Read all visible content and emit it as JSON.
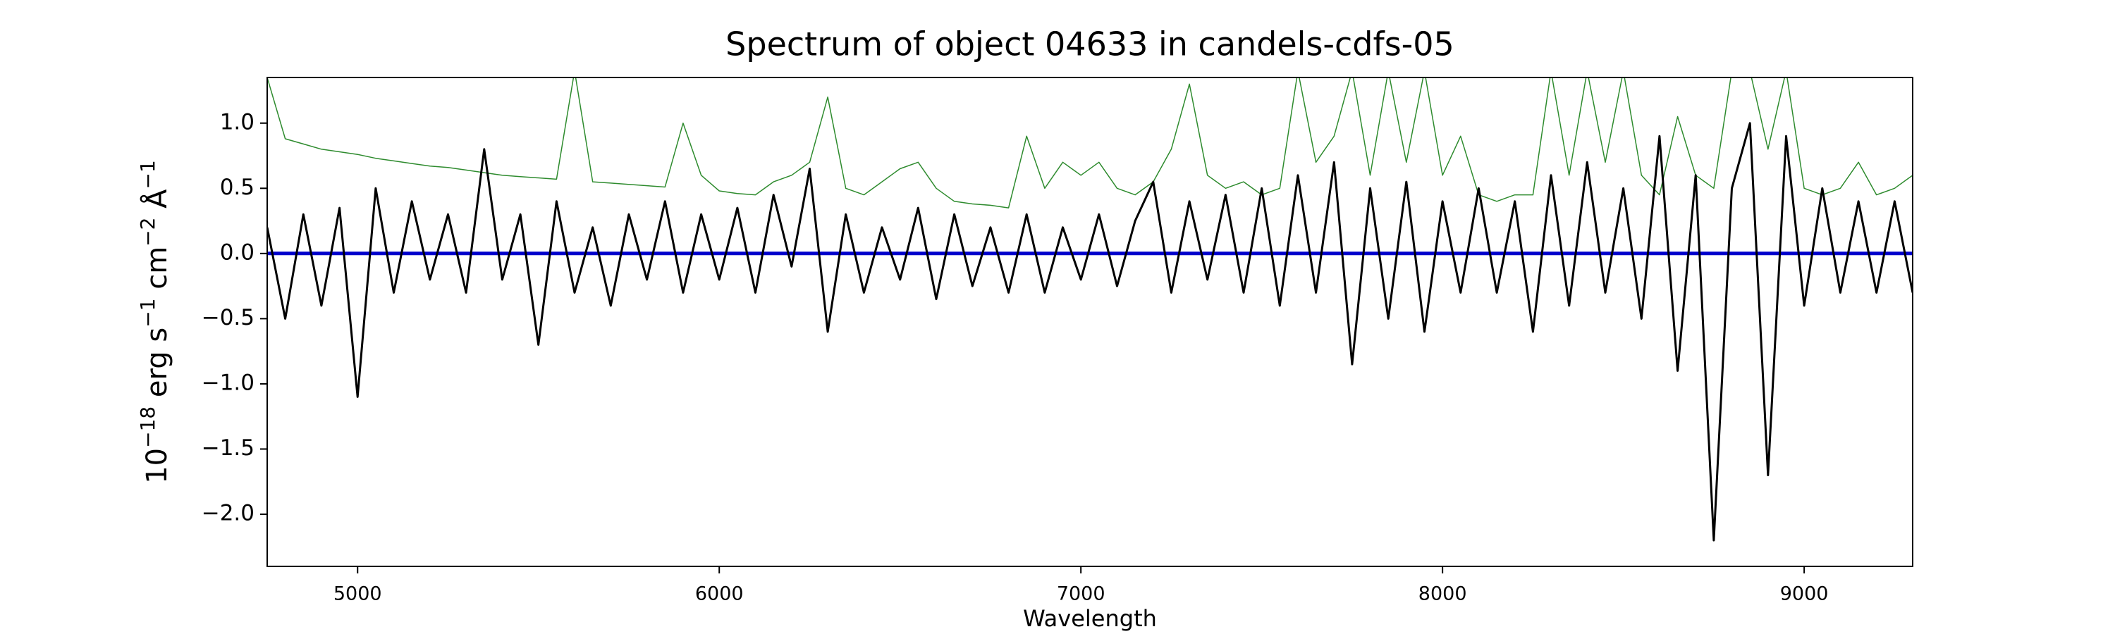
{
  "chart_data": {
    "type": "line",
    "title": "Spectrum of object 04633 in candels-cdfs-05",
    "xlabel": "Wavelength",
    "ylabel": [
      "10",
      "−18",
      " erg s",
      "−1",
      " cm",
      "−2",
      " Å",
      "−1"
    ],
    "x": [
      4750,
      4800,
      4850,
      4900,
      4950,
      5000,
      5050,
      5100,
      5150,
      5200,
      5250,
      5300,
      5350,
      5400,
      5450,
      5500,
      5550,
      5600,
      5650,
      5700,
      5750,
      5800,
      5850,
      5900,
      5950,
      6000,
      6050,
      6100,
      6150,
      6200,
      6250,
      6300,
      6350,
      6400,
      6450,
      6500,
      6550,
      6600,
      6650,
      6700,
      6750,
      6800,
      6850,
      6900,
      6950,
      7000,
      7050,
      7100,
      7150,
      7200,
      7250,
      7300,
      7350,
      7400,
      7450,
      7500,
      7550,
      7600,
      7650,
      7700,
      7750,
      7800,
      7850,
      7900,
      7950,
      8000,
      8050,
      8100,
      8150,
      8200,
      8250,
      8300,
      8350,
      8400,
      8450,
      8500,
      8550,
      8600,
      8650,
      8700,
      8750,
      8800,
      8850,
      8900,
      8950,
      9000,
      9050,
      9100,
      9150,
      9200,
      9250,
      9300
    ],
    "series": [
      {
        "color": "#2e8b2e",
        "width": 1.5,
        "values": [
          1.35,
          0.88,
          0.84,
          0.8,
          0.78,
          0.76,
          0.73,
          0.71,
          0.69,
          0.67,
          0.66,
          0.64,
          0.62,
          0.6,
          0.59,
          0.58,
          0.57,
          1.4,
          0.55,
          0.54,
          0.53,
          0.52,
          0.51,
          1.0,
          0.6,
          0.48,
          0.46,
          0.45,
          0.55,
          0.6,
          0.7,
          1.2,
          0.5,
          0.45,
          0.55,
          0.65,
          0.7,
          0.5,
          0.4,
          0.38,
          0.37,
          0.35,
          0.9,
          0.5,
          0.7,
          0.6,
          0.7,
          0.5,
          0.45,
          0.55,
          0.8,
          1.3,
          0.6,
          0.5,
          0.55,
          0.45,
          0.5,
          1.4,
          0.7,
          0.9,
          1.4,
          0.6,
          1.4,
          0.7,
          1.4,
          0.6,
          0.9,
          0.45,
          0.4,
          0.45,
          0.45,
          1.4,
          0.6,
          1.4,
          0.7,
          1.4,
          0.6,
          0.45,
          1.05,
          0.6,
          0.5,
          1.4,
          1.4,
          0.8,
          1.4,
          0.5,
          0.45,
          0.5,
          0.7,
          0.45,
          0.5,
          0.6
        ]
      },
      {
        "color": "#0000cc",
        "width": 5,
        "values": [
          0,
          0,
          0,
          0,
          0,
          0,
          0,
          0,
          0,
          0,
          0,
          0,
          0,
          0,
          0,
          0,
          0,
          0,
          0,
          0,
          0,
          0,
          0,
          0,
          0,
          0,
          0,
          0,
          0,
          0,
          0,
          0,
          0,
          0,
          0,
          0,
          0,
          0,
          0,
          0,
          0,
          0,
          0,
          0,
          0,
          0,
          0,
          0,
          0,
          0,
          0,
          0,
          0,
          0,
          0,
          0,
          0,
          0,
          0,
          0,
          0,
          0,
          0,
          0,
          0,
          0,
          0,
          0,
          0,
          0,
          0,
          0,
          0,
          0,
          0,
          0,
          0,
          0,
          0,
          0,
          0,
          0,
          0,
          0,
          0,
          0,
          0,
          0,
          0,
          0,
          0,
          0
        ]
      },
      {
        "color": "#000000",
        "width": 3,
        "values": [
          0.2,
          -0.5,
          0.3,
          -0.4,
          0.35,
          -1.1,
          0.5,
          -0.3,
          0.4,
          -0.2,
          0.3,
          -0.3,
          0.8,
          -0.2,
          0.3,
          -0.7,
          0.4,
          -0.3,
          0.2,
          -0.4,
          0.3,
          -0.2,
          0.4,
          -0.3,
          0.3,
          -0.2,
          0.35,
          -0.3,
          0.45,
          -0.1,
          0.65,
          -0.6,
          0.3,
          -0.3,
          0.2,
          -0.2,
          0.35,
          -0.35,
          0.3,
          -0.25,
          0.2,
          -0.3,
          0.3,
          -0.3,
          0.2,
          -0.2,
          0.3,
          -0.25,
          0.25,
          0.55,
          -0.3,
          0.4,
          -0.2,
          0.45,
          -0.3,
          0.5,
          -0.4,
          0.6,
          -0.3,
          0.7,
          -0.85,
          0.5,
          -0.5,
          0.55,
          -0.6,
          0.4,
          -0.3,
          0.5,
          -0.3,
          0.4,
          -0.6,
          0.6,
          -0.4,
          0.7,
          -0.3,
          0.5,
          -0.5,
          0.9,
          -0.9,
          0.6,
          -2.2,
          0.5,
          1.0,
          -1.7,
          0.9,
          -0.4,
          0.5,
          -0.3,
          0.4,
          -0.3,
          0.4,
          -0.3
        ]
      }
    ],
    "xlim": [
      4750,
      9300
    ],
    "xticks": [
      5000,
      6000,
      7000,
      8000,
      9000
    ],
    "ylim": [
      -2.4,
      1.35
    ],
    "yticks": [
      {
        "value": -2.0,
        "label": "−2.0"
      },
      {
        "value": -1.5,
        "label": "−1.5"
      },
      {
        "value": -1.0,
        "label": "−1.0"
      },
      {
        "value": -0.5,
        "label": "−0.5"
      },
      {
        "value": 0.0,
        "label": "0.0"
      },
      {
        "value": 0.5,
        "label": "0.5"
      },
      {
        "value": 1.0,
        "label": "1.0"
      }
    ],
    "grid": false
  }
}
